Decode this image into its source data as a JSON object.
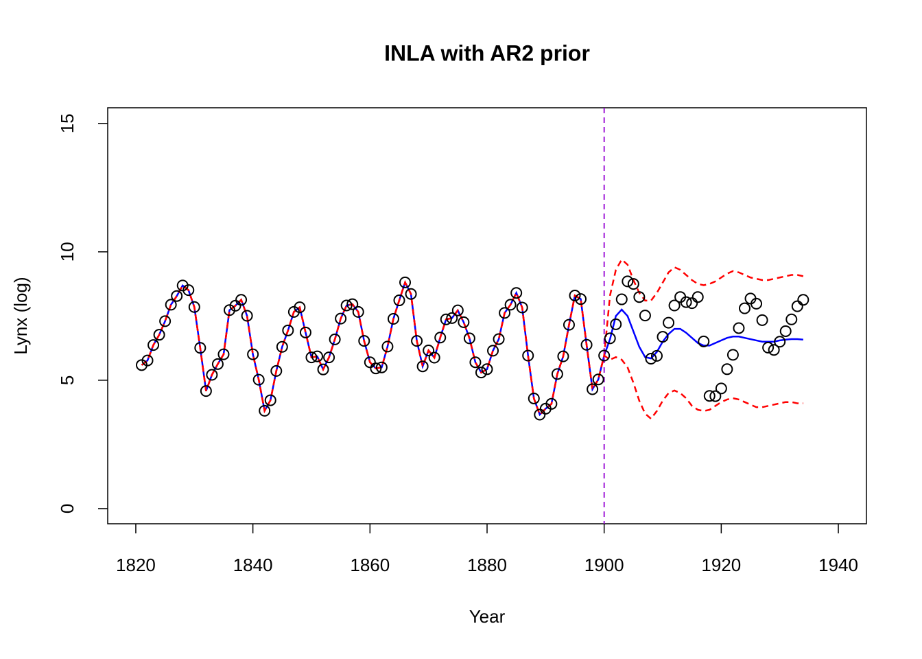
{
  "chart_data": {
    "type": "line",
    "title": "INLA with AR2 prior",
    "x_label": "Year",
    "y_label": "Lynx (log)",
    "xlim": [
      1815.2,
      1944.8
    ],
    "ylim": [
      -0.59,
      15.61
    ],
    "xticks": [
      1820,
      1840,
      1860,
      1880,
      1900,
      1920,
      1940
    ],
    "yticks": [
      0,
      5,
      10,
      15
    ],
    "vline": {
      "x": 1900,
      "color": "#9400d3"
    },
    "x": [
      1821,
      1822,
      1823,
      1824,
      1825,
      1826,
      1827,
      1828,
      1829,
      1830,
      1831,
      1832,
      1833,
      1834,
      1835,
      1836,
      1837,
      1838,
      1839,
      1840,
      1841,
      1842,
      1843,
      1844,
      1845,
      1846,
      1847,
      1848,
      1849,
      1850,
      1851,
      1852,
      1853,
      1854,
      1855,
      1856,
      1857,
      1858,
      1859,
      1860,
      1861,
      1862,
      1863,
      1864,
      1865,
      1866,
      1867,
      1868,
      1869,
      1870,
      1871,
      1872,
      1873,
      1874,
      1875,
      1876,
      1877,
      1878,
      1879,
      1880,
      1881,
      1882,
      1883,
      1884,
      1885,
      1886,
      1887,
      1888,
      1889,
      1890,
      1891,
      1892,
      1893,
      1894,
      1895,
      1896,
      1897,
      1898,
      1899,
      1900,
      1901,
      1902,
      1903,
      1904,
      1905,
      1906,
      1907,
      1908,
      1909,
      1910,
      1911,
      1912,
      1913,
      1914,
      1915,
      1916,
      1917,
      1918,
      1919,
      1920,
      1921,
      1922,
      1923,
      1924,
      1925,
      1926,
      1927,
      1928,
      1929,
      1930,
      1931,
      1932,
      1933,
      1934
    ],
    "points": {
      "color": "#000000",
      "values": [
        5.59,
        5.77,
        6.37,
        6.77,
        7.3,
        7.94,
        8.28,
        8.69,
        8.51,
        7.85,
        6.26,
        4.58,
        5.21,
        5.63,
        6.01,
        7.73,
        7.9,
        8.13,
        7.51,
        6.01,
        5.02,
        3.81,
        4.22,
        5.36,
        6.3,
        6.94,
        7.66,
        7.84,
        6.86,
        5.89,
        5.93,
        5.42,
        5.89,
        6.59,
        7.4,
        7.91,
        7.96,
        7.66,
        6.53,
        5.7,
        5.46,
        5.5,
        6.31,
        7.39,
        8.11,
        8.81,
        8.36,
        6.53,
        5.54,
        6.16,
        5.88,
        6.66,
        7.37,
        7.42,
        7.72,
        7.26,
        6.63,
        5.7,
        5.3,
        5.43,
        6.15,
        6.6,
        7.62,
        7.94,
        8.4,
        7.83,
        5.96,
        4.29,
        3.66,
        3.89,
        4.08,
        5.24,
        5.93,
        7.16,
        8.3,
        8.16,
        6.38,
        4.65,
        5.03,
        5.96,
        6.63,
        7.18,
        8.15,
        8.85,
        8.75,
        8.24,
        7.52,
        5.84,
        5.95,
        6.69,
        7.24,
        7.91,
        8.24,
        8.04,
        8.0,
        8.24,
        6.51,
        4.39,
        4.38,
        4.68,
        5.43,
        5.99,
        7.03,
        7.8,
        8.18,
        7.98,
        7.34,
        6.27,
        6.18,
        6.5,
        6.91,
        7.37,
        7.88,
        8.13
      ]
    },
    "series": [
      {
        "color": "#0000ff",
        "dash": false,
        "values": [
          5.59,
          5.77,
          6.37,
          6.77,
          7.3,
          7.94,
          8.28,
          8.69,
          8.51,
          7.85,
          6.26,
          4.58,
          5.21,
          5.63,
          6.01,
          7.73,
          7.9,
          8.13,
          7.51,
          6.01,
          5.02,
          3.81,
          4.22,
          5.36,
          6.3,
          6.94,
          7.66,
          7.84,
          6.86,
          5.89,
          5.93,
          5.42,
          5.89,
          6.59,
          7.4,
          7.91,
          7.96,
          7.66,
          6.53,
          5.7,
          5.46,
          5.5,
          6.31,
          7.39,
          8.11,
          8.81,
          8.36,
          6.53,
          5.54,
          6.16,
          5.88,
          6.66,
          7.37,
          7.42,
          7.72,
          7.26,
          6.63,
          5.7,
          5.3,
          5.43,
          6.15,
          6.6,
          7.62,
          7.94,
          8.4,
          7.83,
          5.96,
          4.29,
          3.66,
          3.89,
          4.08,
          5.24,
          5.93,
          7.16,
          8.3,
          8.16,
          6.38,
          4.65,
          5.03,
          5.96,
          6.6,
          7.5,
          7.75,
          7.5,
          6.9,
          6.3,
          5.9,
          5.85,
          6.1,
          6.5,
          6.8,
          7.0,
          7.0,
          6.85,
          6.65,
          6.45,
          6.35,
          6.35,
          6.45,
          6.55,
          6.65,
          6.7,
          6.7,
          6.65,
          6.6,
          6.55,
          6.5,
          6.5,
          6.5,
          6.55,
          6.58,
          6.6,
          6.6,
          6.58
        ]
      },
      {
        "color": "#ff0000",
        "dash": true,
        "values": [
          5.59,
          5.77,
          6.37,
          6.77,
          7.3,
          7.94,
          8.28,
          8.69,
          8.51,
          7.85,
          6.26,
          4.58,
          5.21,
          5.63,
          6.01,
          7.73,
          7.9,
          8.13,
          7.51,
          6.01,
          5.02,
          3.81,
          4.22,
          5.36,
          6.3,
          6.94,
          7.66,
          7.84,
          6.86,
          5.89,
          5.93,
          5.42,
          5.89,
          6.59,
          7.4,
          7.91,
          7.96,
          7.66,
          6.53,
          5.7,
          5.46,
          5.5,
          6.31,
          7.39,
          8.11,
          8.81,
          8.36,
          6.53,
          5.54,
          6.16,
          5.88,
          6.66,
          7.37,
          7.42,
          7.72,
          7.26,
          6.63,
          5.7,
          5.3,
          5.43,
          6.15,
          6.6,
          7.62,
          7.94,
          8.4,
          7.83,
          5.96,
          4.29,
          3.66,
          3.89,
          4.08,
          5.24,
          5.93,
          7.16,
          8.3,
          8.16,
          6.38,
          4.65,
          5.03,
          5.96,
          8.3,
          9.3,
          9.7,
          9.5,
          8.9,
          8.4,
          8.1,
          8.1,
          8.4,
          8.8,
          9.2,
          9.4,
          9.3,
          9.1,
          8.9,
          8.75,
          8.7,
          8.75,
          8.85,
          9.0,
          9.15,
          9.25,
          9.2,
          9.1,
          9.0,
          8.95,
          8.9,
          8.9,
          8.95,
          9.0,
          9.05,
          9.1,
          9.1,
          9.05
        ]
      },
      {
        "color": "#ff0000",
        "dash": true,
        "values": [
          5.59,
          5.77,
          6.37,
          6.77,
          7.3,
          7.94,
          8.28,
          8.69,
          8.51,
          7.85,
          6.26,
          4.58,
          5.21,
          5.63,
          6.01,
          7.73,
          7.9,
          8.13,
          7.51,
          6.01,
          5.02,
          3.81,
          4.22,
          5.36,
          6.3,
          6.94,
          7.66,
          7.84,
          6.86,
          5.89,
          5.93,
          5.42,
          5.89,
          6.59,
          7.4,
          7.91,
          7.96,
          7.66,
          6.53,
          5.7,
          5.46,
          5.5,
          6.31,
          7.39,
          8.11,
          8.81,
          8.36,
          6.53,
          5.54,
          6.16,
          5.88,
          6.66,
          7.37,
          7.42,
          7.72,
          7.26,
          6.63,
          5.7,
          5.3,
          5.43,
          6.15,
          6.6,
          7.62,
          7.94,
          8.4,
          7.83,
          5.96,
          4.29,
          3.66,
          3.89,
          4.08,
          5.24,
          5.93,
          7.16,
          8.3,
          8.16,
          6.38,
          4.65,
          5.03,
          5.96,
          5.8,
          5.9,
          5.8,
          5.5,
          4.9,
          4.2,
          3.7,
          3.5,
          3.8,
          4.2,
          4.5,
          4.6,
          4.5,
          4.3,
          4.0,
          3.85,
          3.8,
          3.85,
          4.0,
          4.15,
          4.25,
          4.3,
          4.25,
          4.15,
          4.05,
          3.95,
          3.95,
          4.0,
          4.05,
          4.1,
          4.15,
          4.15,
          4.1,
          4.1
        ]
      }
    ]
  }
}
